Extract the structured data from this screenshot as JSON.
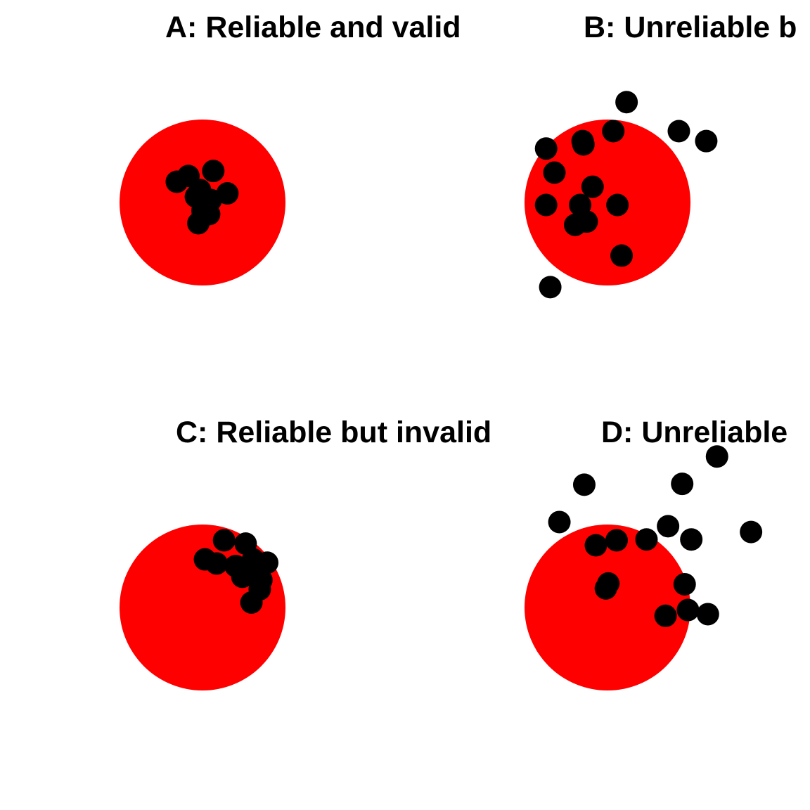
{
  "chart_data": [
    {
      "type": "scatter",
      "title": "A: Reliable and valid",
      "color": "#000000",
      "target_color": "#ff0000",
      "target_radius": 1,
      "xlim": [
        -2,
        2
      ],
      "ylim": [
        -2,
        2
      ],
      "x": [
        -0.31,
        -0.17,
        0.13,
        0.3,
        -0.05,
        0.08,
        0.02,
        -0.03,
        -0.08,
        0.03,
        0.1,
        0.0
      ],
      "y": [
        0.25,
        0.32,
        0.38,
        0.11,
        -0.25,
        -0.14,
        -0.02,
        0.15,
        0.07,
        -0.06,
        0.03,
        -0.1
      ]
    },
    {
      "type": "scatter",
      "title": "B: Unreliable b",
      "color": "#000000",
      "target_color": "#ff0000",
      "target_radius": 1,
      "xlim": [
        -2,
        2
      ],
      "ylim": [
        -2,
        2
      ],
      "x": [
        0.23,
        0.86,
        1.19,
        0.07,
        -0.3,
        -0.29,
        -0.74,
        -0.64,
        -0.18,
        -0.74,
        -0.33,
        0.12,
        -0.25,
        -0.39,
        0.17,
        -0.69
      ],
      "y": [
        1.21,
        0.86,
        0.74,
        0.86,
        0.74,
        0.7,
        0.65,
        0.36,
        0.19,
        -0.03,
        -0.03,
        -0.03,
        -0.23,
        -0.27,
        -0.64,
        -1.02
      ]
    },
    {
      "type": "scatter",
      "title": "C: Reliable but invalid",
      "color": "#000000",
      "target_color": "#ff0000",
      "target_radius": 1,
      "xlim": [
        -2,
        2
      ],
      "ylim": [
        -2,
        2
      ],
      "x": [
        0.26,
        0.52,
        0.78,
        0.03,
        0.17,
        0.4,
        0.48,
        0.71,
        0.69,
        0.59,
        0.57,
        0.61
      ],
      "y": [
        0.81,
        0.77,
        0.54,
        0.58,
        0.53,
        0.5,
        0.37,
        0.33,
        0.22,
        0.06,
        0.46,
        0.58
      ]
    },
    {
      "type": "scatter",
      "title": "D: Unreliable",
      "color": "#000000",
      "target_color": "#ff0000",
      "target_radius": 1,
      "xlim": [
        -2,
        2
      ],
      "ylim": [
        -2,
        2
      ],
      "x": [
        1.32,
        -0.28,
        0.9,
        -0.58,
        0.73,
        1.73,
        -0.14,
        0.11,
        0.47,
        1.01,
        0.01,
        -0.02,
        0.93,
        0.97,
        0.7,
        1.21
      ],
      "y": [
        1.82,
        1.48,
        1.49,
        1.03,
        0.98,
        0.91,
        0.75,
        0.81,
        0.82,
        0.82,
        0.29,
        0.23,
        0.28,
        -0.03,
        -0.1,
        -0.08
      ]
    }
  ]
}
